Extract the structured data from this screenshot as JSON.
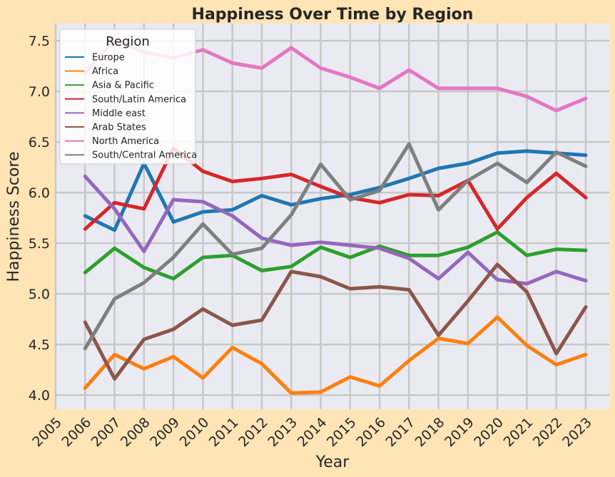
{
  "chart_data": {
    "type": "line",
    "title": "Happiness Over Time by Region",
    "xlabel": "Year",
    "ylabel": "Happiness Score",
    "xlim": [
      2005,
      2023.8
    ],
    "ylim": [
      3.86,
      7.67
    ],
    "x_ticks": [
      2005,
      2006,
      2007,
      2008,
      2009,
      2010,
      2011,
      2012,
      2013,
      2014,
      2015,
      2016,
      2017,
      2018,
      2019,
      2020,
      2021,
      2022,
      2023
    ],
    "y_ticks": [
      "4.0",
      "4.5",
      "5.0",
      "5.5",
      "6.0",
      "6.5",
      "7.0",
      "7.5"
    ],
    "grid": true,
    "legend_title": "Region",
    "legend_position": "upper-left",
    "x": [
      2006,
      2007,
      2008,
      2009,
      2010,
      2011,
      2012,
      2013,
      2014,
      2015,
      2016,
      2017,
      2018,
      2019,
      2020,
      2021,
      2022,
      2023
    ],
    "series": [
      {
        "name": "Europe",
        "color": "#1f77b4",
        "values": [
          5.77,
          5.63,
          6.29,
          5.71,
          5.81,
          5.83,
          5.97,
          5.88,
          5.94,
          5.98,
          6.05,
          6.14,
          6.24,
          6.29,
          6.39,
          6.41,
          6.39,
          6.37
        ]
      },
      {
        "name": "Africa",
        "color": "#ff7f0e",
        "values": [
          4.07,
          4.4,
          4.26,
          4.38,
          4.17,
          4.47,
          4.31,
          4.02,
          4.03,
          4.18,
          4.09,
          4.34,
          4.56,
          4.51,
          4.77,
          4.49,
          4.3,
          4.4
        ]
      },
      {
        "name": "Asia & Pacific",
        "color": "#2ca02c",
        "values": [
          5.21,
          5.45,
          5.26,
          5.15,
          5.36,
          5.38,
          5.23,
          5.27,
          5.46,
          5.36,
          5.47,
          5.38,
          5.38,
          5.46,
          5.61,
          5.38,
          5.44,
          5.43
        ]
      },
      {
        "name": "South/Latin America",
        "color": "#d62728",
        "values": [
          5.64,
          5.9,
          5.84,
          6.44,
          6.21,
          6.11,
          6.14,
          6.18,
          6.06,
          5.95,
          5.9,
          5.98,
          5.97,
          6.12,
          5.64,
          5.95,
          6.19,
          5.95
        ]
      },
      {
        "name": "Middle east",
        "color": "#9467bd",
        "values": [
          6.16,
          5.84,
          5.42,
          5.93,
          5.91,
          5.77,
          5.55,
          5.48,
          5.51,
          5.48,
          5.45,
          5.35,
          5.15,
          5.41,
          5.14,
          5.1,
          5.22,
          5.13
        ]
      },
      {
        "name": "Arab States",
        "color": "#8c564b",
        "values": [
          4.72,
          4.16,
          4.55,
          4.65,
          4.85,
          4.69,
          4.74,
          5.22,
          5.17,
          5.05,
          5.07,
          5.04,
          4.59,
          4.93,
          5.29,
          5.02,
          4.41,
          4.87
        ]
      },
      {
        "name": "North America",
        "color": "#e377c2",
        "values": [
          7.18,
          7.51,
          7.39,
          7.33,
          7.41,
          7.28,
          7.23,
          7.43,
          7.23,
          7.14,
          7.03,
          7.21,
          7.03,
          7.03,
          7.03,
          6.95,
          6.81,
          6.93
        ]
      },
      {
        "name": "South/Central America",
        "color": "#7f7f7f",
        "values": [
          4.46,
          4.95,
          5.11,
          5.36,
          5.69,
          5.39,
          5.45,
          5.78,
          6.28,
          5.93,
          6.02,
          6.48,
          5.83,
          6.12,
          6.29,
          6.1,
          6.4,
          6.26
        ]
      }
    ]
  }
}
